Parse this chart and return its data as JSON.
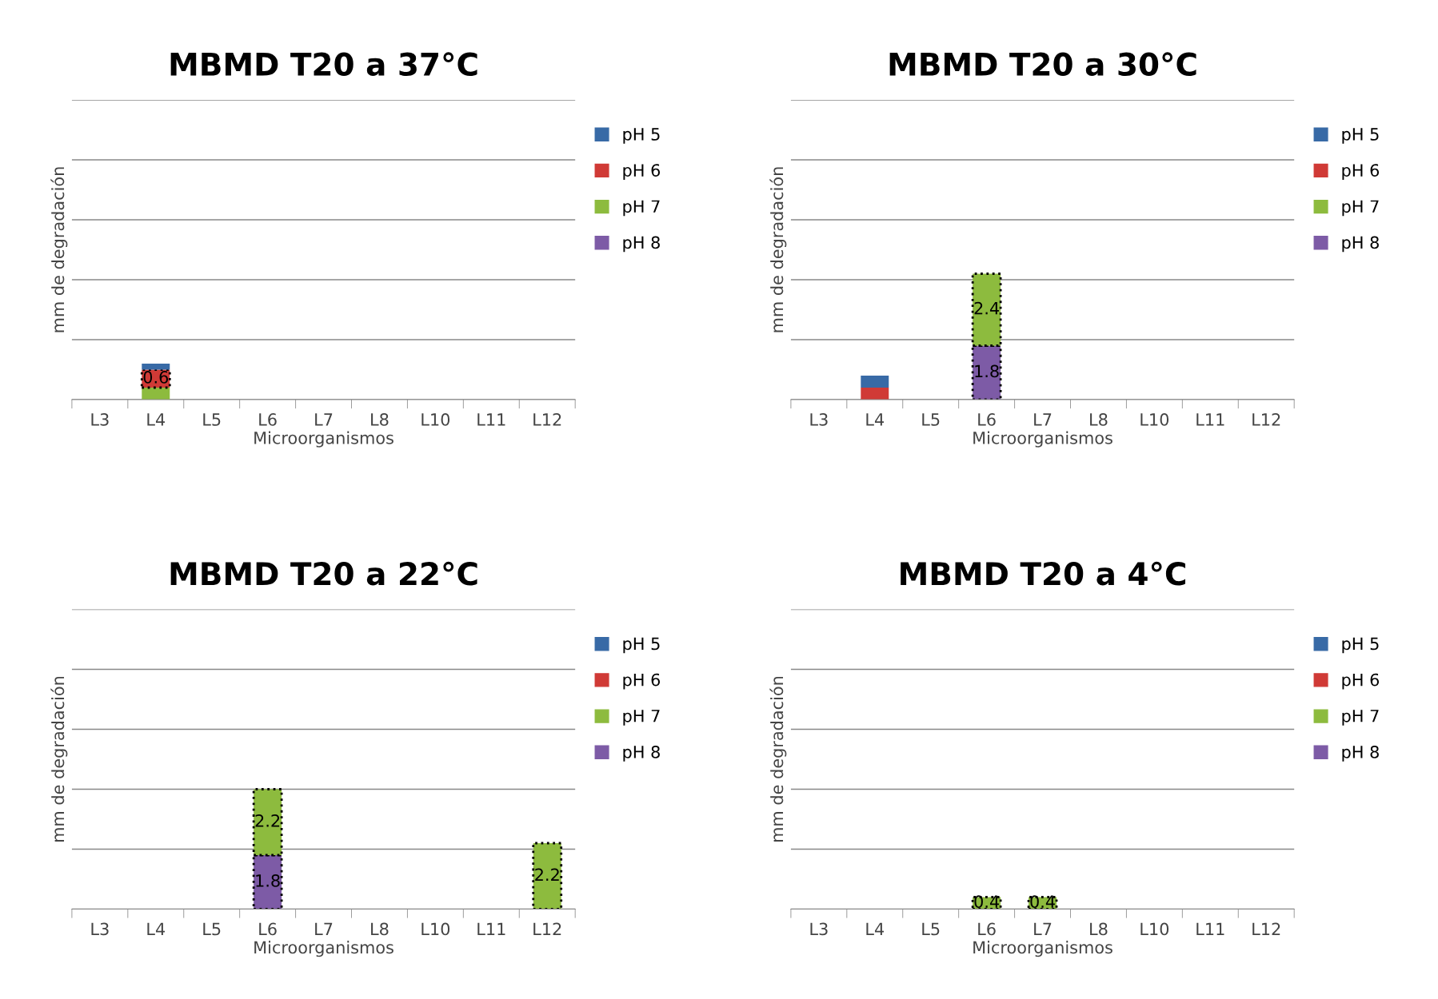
{
  "chart_data": [
    {
      "type": "bar",
      "stacked": true,
      "title": "MBMD T20 a 37°C",
      "xlabel": "Microorganismos",
      "ylabel": "mm de degradación",
      "categories": [
        "L3",
        "L4",
        "L5",
        "L6",
        "L7",
        "L8",
        "L10",
        "L11",
        "L12"
      ],
      "ylim": [
        0,
        10
      ],
      "yticks": [
        {
          "value": 0,
          "label": null
        },
        {
          "value": 2,
          "label": null
        },
        {
          "value": 4,
          "label": null
        },
        {
          "value": 6,
          "label": null
        },
        {
          "value": 8,
          "label": null
        },
        {
          "value": 10,
          "label": null
        }
      ],
      "tick_labels": "x",
      "grid": "y",
      "legend": "right",
      "series": [
        {
          "name": "pH 8",
          "color": "#7d5ba6",
          "values": [
            null,
            null,
            null,
            null,
            null,
            null,
            null,
            null,
            null
          ]
        },
        {
          "name": "pH 7",
          "color": "#8dbb3e",
          "values": [
            null,
            0.4,
            null,
            null,
            null,
            null,
            null,
            null,
            null
          ]
        },
        {
          "name": "pH 6",
          "color": "#d03a36",
          "values": [
            null,
            0.6,
            null,
            null,
            null,
            null,
            null,
            null,
            null
          ],
          "value_labels": [
            null,
            "0.6",
            null,
            null,
            null,
            null,
            null,
            null,
            null
          ]
        },
        {
          "name": "pH 5",
          "color": "#386aa6",
          "values": [
            null,
            0.2,
            null,
            null,
            null,
            null,
            null,
            null,
            null
          ]
        }
      ]
    },
    {
      "type": "bar",
      "stacked": true,
      "title": "MBMD T20 a 30°C",
      "xlabel": "Microorganismos",
      "ylabel": "mm de degradación",
      "categories": [
        "L3",
        "L4",
        "L5",
        "L6",
        "L7",
        "L8",
        "L10",
        "L11",
        "L12"
      ],
      "ylim": [
        0,
        10
      ],
      "yticks": [
        {
          "value": 0,
          "label": null
        },
        {
          "value": 2,
          "label": null
        },
        {
          "value": 4,
          "label": null
        },
        {
          "value": 6,
          "label": null
        },
        {
          "value": 8,
          "label": null
        },
        {
          "value": 10,
          "label": null
        }
      ],
      "tick_labels": "x",
      "grid": "y",
      "legend": "right",
      "series": [
        {
          "name": "pH 8",
          "color": "#7d5ba6",
          "values": [
            null,
            null,
            null,
            1.8,
            null,
            null,
            null,
            null,
            null
          ],
          "value_labels": [
            null,
            null,
            null,
            "1.8",
            null,
            null,
            null,
            null,
            null
          ]
        },
        {
          "name": "pH 7",
          "color": "#8dbb3e",
          "values": [
            null,
            null,
            null,
            2.4,
            null,
            null,
            null,
            null,
            null
          ],
          "value_labels": [
            null,
            null,
            null,
            "2.4",
            null,
            null,
            null,
            null,
            null
          ]
        },
        {
          "name": "pH 6",
          "color": "#d03a36",
          "values": [
            null,
            0.4,
            null,
            null,
            null,
            null,
            null,
            null,
            null
          ]
        },
        {
          "name": "pH 5",
          "color": "#386aa6",
          "values": [
            null,
            0.4,
            null,
            null,
            null,
            null,
            null,
            null,
            null
          ]
        }
      ]
    },
    {
      "type": "bar",
      "stacked": true,
      "title": "MBMD T20 a 22°C",
      "xlabel": "Microorganismos",
      "ylabel": "mm de degradación",
      "categories": [
        "L3",
        "L4",
        "L5",
        "L6",
        "L7",
        "L8",
        "L10",
        "L11",
        "L12"
      ],
      "ylim": [
        0,
        10
      ],
      "yticks": [
        {
          "value": 0,
          "label": null
        },
        {
          "value": 2,
          "label": null
        },
        {
          "value": 4,
          "label": null
        },
        {
          "value": 6,
          "label": null
        },
        {
          "value": 8,
          "label": null
        },
        {
          "value": 10,
          "label": null
        }
      ],
      "tick_labels": "x",
      "grid": "y",
      "legend": "right",
      "series": [
        {
          "name": "pH 8",
          "color": "#7d5ba6",
          "values": [
            null,
            null,
            null,
            1.8,
            null,
            null,
            null,
            null,
            null
          ],
          "value_labels": [
            null,
            null,
            null,
            "1.8",
            null,
            null,
            null,
            null,
            null
          ]
        },
        {
          "name": "pH 7",
          "color": "#8dbb3e",
          "values": [
            null,
            null,
            null,
            2.2,
            null,
            null,
            null,
            null,
            2.2
          ],
          "value_labels": [
            null,
            null,
            null,
            "2.2",
            null,
            null,
            null,
            null,
            "2.2"
          ]
        },
        {
          "name": "pH 6",
          "color": "#d03a36",
          "values": [
            null,
            null,
            null,
            null,
            null,
            null,
            null,
            null,
            null
          ]
        },
        {
          "name": "pH 5",
          "color": "#386aa6",
          "values": [
            null,
            null,
            null,
            null,
            null,
            null,
            null,
            null,
            null
          ]
        }
      ]
    },
    {
      "type": "bar",
      "stacked": true,
      "title": "MBMD T20 a 4°C",
      "xlabel": "Microorganismos",
      "ylabel": "mm de degradación",
      "categories": [
        "L3",
        "L4",
        "L5",
        "L6",
        "L7",
        "L8",
        "L10",
        "L11",
        "L12"
      ],
      "ylim": [
        0,
        10
      ],
      "yticks": [
        {
          "value": 0,
          "label": null
        },
        {
          "value": 2,
          "label": null
        },
        {
          "value": 4,
          "label": null
        },
        {
          "value": 6,
          "label": null
        },
        {
          "value": 8,
          "label": null
        },
        {
          "value": 10,
          "label": null
        }
      ],
      "tick_labels": "x",
      "grid": "y",
      "legend": "right",
      "series": [
        {
          "name": "pH 8",
          "color": "#7d5ba6",
          "values": [
            null,
            null,
            null,
            null,
            null,
            null,
            null,
            null,
            null
          ]
        },
        {
          "name": "pH 7",
          "color": "#8dbb3e",
          "values": [
            null,
            null,
            null,
            0.4,
            0.4,
            null,
            null,
            null,
            null
          ],
          "value_labels": [
            null,
            null,
            null,
            "0.4",
            "0.4",
            null,
            null,
            null,
            null
          ]
        },
        {
          "name": "pH 6",
          "color": "#d03a36",
          "values": [
            null,
            null,
            null,
            null,
            null,
            null,
            null,
            null,
            null
          ]
        },
        {
          "name": "pH 5",
          "color": "#386aa6",
          "values": [
            null,
            null,
            null,
            null,
            null,
            null,
            null,
            null,
            null
          ]
        }
      ]
    }
  ]
}
